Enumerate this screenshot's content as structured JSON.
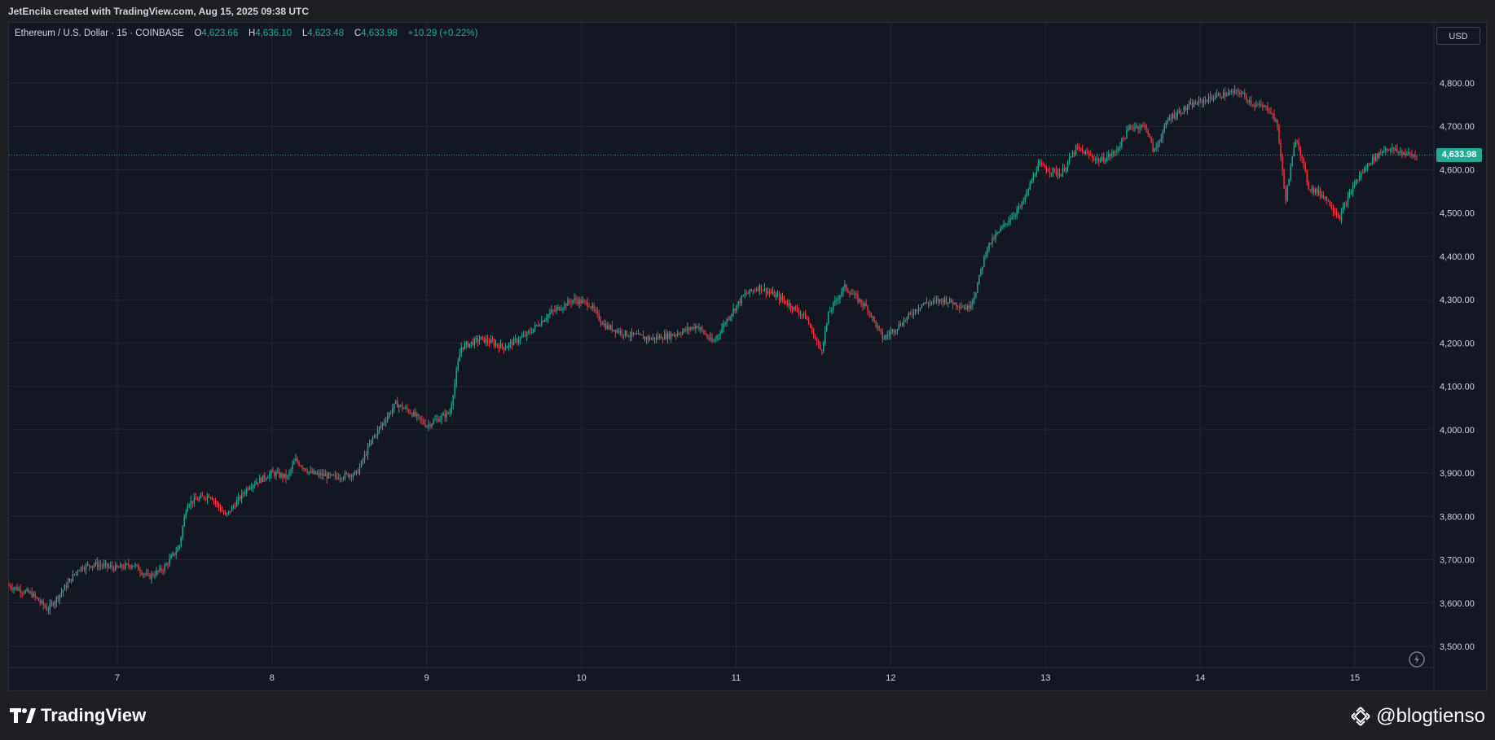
{
  "header": {
    "credit": "JetEncila created with TradingView.com, Aug 15, 2025 09:38 UTC"
  },
  "legend": {
    "symbol": "Ethereum / U.S. Dollar · 15 · COINBASE",
    "o_label": "O",
    "o_value": "4,623.66",
    "h_label": "H",
    "h_value": "4,636.10",
    "l_label": "L",
    "l_value": "4,623.48",
    "c_label": "C",
    "c_value": "4,633.98",
    "change": "+10.29 (+0.22%)"
  },
  "controls": {
    "currency": "USD"
  },
  "last_price_label": "4,633.98",
  "footer": {
    "brand": "TradingView",
    "watermark": "@blogtienso"
  },
  "colors": {
    "up": "#22ab94",
    "down": "#f23645",
    "background": "#131722",
    "grid": "#2a2e39"
  },
  "icons": {
    "brand_icon": "tradingview-logo-icon",
    "watermark_icon": "binance-icon",
    "sync_icon": "sync-icon"
  },
  "chart_data": {
    "type": "candlestick",
    "interval": "15",
    "x_ticks": [
      "7",
      "8",
      "9",
      "10",
      "11",
      "12",
      "13",
      "14",
      "15"
    ],
    "y_ticks": [
      "3,500.00",
      "3,600.00",
      "3,700.00",
      "3,800.00",
      "3,900.00",
      "4,000.00",
      "4,100.00",
      "4,200.00",
      "4,300.00",
      "4,400.00",
      "4,500.00",
      "4,600.00",
      "4,700.00",
      "4,800.00"
    ],
    "ylim": [
      3455,
      4920
    ],
    "xlim": [
      6.3,
      15.5
    ],
    "last_price": 4633.98,
    "grid": true,
    "price_path": [
      [
        6.3,
        3640
      ],
      [
        6.45,
        3620
      ],
      [
        6.55,
        3585
      ],
      [
        6.65,
        3630
      ],
      [
        6.75,
        3680
      ],
      [
        6.85,
        3690
      ],
      [
        7.0,
        3680
      ],
      [
        7.1,
        3690
      ],
      [
        7.2,
        3660
      ],
      [
        7.3,
        3680
      ],
      [
        7.4,
        3730
      ],
      [
        7.45,
        3830
      ],
      [
        7.6,
        3850
      ],
      [
        7.7,
        3800
      ],
      [
        7.85,
        3870
      ],
      [
        8.0,
        3900
      ],
      [
        8.1,
        3890
      ],
      [
        8.15,
        3930
      ],
      [
        8.25,
        3900
      ],
      [
        8.4,
        3890
      ],
      [
        8.55,
        3900
      ],
      [
        8.65,
        3980
      ],
      [
        8.8,
        4060
      ],
      [
        8.9,
        4040
      ],
      [
        9.0,
        4010
      ],
      [
        9.15,
        4040
      ],
      [
        9.22,
        4190
      ],
      [
        9.35,
        4210
      ],
      [
        9.5,
        4190
      ],
      [
        9.65,
        4220
      ],
      [
        9.8,
        4270
      ],
      [
        9.95,
        4300
      ],
      [
        10.05,
        4290
      ],
      [
        10.15,
        4240
      ],
      [
        10.3,
        4220
      ],
      [
        10.45,
        4210
      ],
      [
        10.6,
        4220
      ],
      [
        10.75,
        4240
      ],
      [
        10.85,
        4200
      ],
      [
        10.95,
        4260
      ],
      [
        11.05,
        4310
      ],
      [
        11.15,
        4330
      ],
      [
        11.3,
        4300
      ],
      [
        11.45,
        4260
      ],
      [
        11.55,
        4180
      ],
      [
        11.6,
        4270
      ],
      [
        11.7,
        4330
      ],
      [
        11.85,
        4280
      ],
      [
        11.95,
        4210
      ],
      [
        12.05,
        4240
      ],
      [
        12.2,
        4290
      ],
      [
        12.35,
        4300
      ],
      [
        12.5,
        4280
      ],
      [
        12.55,
        4320
      ],
      [
        12.62,
        4420
      ],
      [
        12.75,
        4480
      ],
      [
        12.85,
        4520
      ],
      [
        12.95,
        4610
      ],
      [
        13.1,
        4590
      ],
      [
        13.2,
        4650
      ],
      [
        13.35,
        4620
      ],
      [
        13.45,
        4640
      ],
      [
        13.55,
        4700
      ],
      [
        13.65,
        4700
      ],
      [
        13.7,
        4640
      ],
      [
        13.8,
        4720
      ],
      [
        13.95,
        4750
      ],
      [
        14.1,
        4770
      ],
      [
        14.25,
        4780
      ],
      [
        14.35,
        4750
      ],
      [
        14.45,
        4740
      ],
      [
        14.5,
        4700
      ],
      [
        14.55,
        4530
      ],
      [
        14.62,
        4680
      ],
      [
        14.7,
        4560
      ],
      [
        14.8,
        4540
      ],
      [
        14.9,
        4490
      ],
      [
        15.0,
        4570
      ],
      [
        15.1,
        4620
      ],
      [
        15.2,
        4650
      ],
      [
        15.3,
        4640
      ],
      [
        15.4,
        4630
      ]
    ]
  }
}
